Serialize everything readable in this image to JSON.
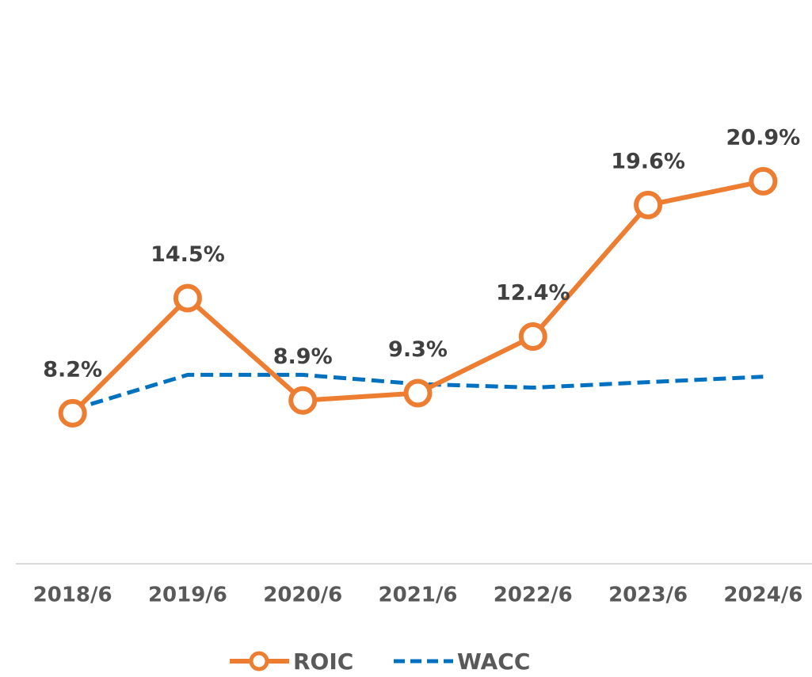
{
  "chart_data": {
    "type": "line",
    "categories": [
      "2018/6",
      "2019/6",
      "2020/6",
      "2021/6",
      "2022/6",
      "2023/6",
      "2024/6"
    ],
    "series": [
      {
        "name": "ROIC",
        "color": "#ed7d31",
        "values": [
          8.2,
          14.5,
          8.9,
          9.3,
          12.4,
          19.6,
          20.9
        ],
        "value_labels": [
          "8.2%",
          "14.5%",
          "8.9%",
          "9.3%",
          "12.4%",
          "19.6%",
          "20.9%"
        ]
      },
      {
        "name": "WACC",
        "color": "#0070c0",
        "values": [
          8.4,
          10.3,
          10.3,
          9.8,
          9.6,
          9.9,
          10.2
        ]
      }
    ],
    "ylim": [
      0,
      30
    ]
  }
}
